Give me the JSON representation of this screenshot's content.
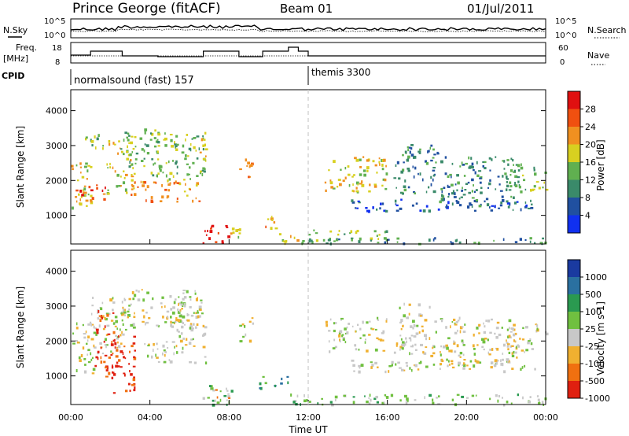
{
  "header": {
    "station": "Prince George (fitACF)",
    "beam": "Beam 01",
    "date": "01/Jul/2011"
  },
  "top_panels": {
    "nsky_label": "N.Sky",
    "nsky_ticks": [
      "10^5",
      "10^0"
    ],
    "nsearch_label": "N.Search",
    "nsearch_ticks": [
      "10^5",
      "10^0"
    ],
    "freq_label": "Freq.",
    "freq_unit": "[MHz]",
    "freq_ticks": [
      "18",
      "8"
    ],
    "nave_label": "Nave",
    "nave_ticks": [
      "60",
      "0"
    ],
    "cpid_label": "CPID",
    "cpid_segments": [
      {
        "name": "normalsound (fast) 157",
        "start_hour": 0,
        "end_hour": 12
      },
      {
        "name": "themis 3300",
        "start_hour": 12,
        "end_hour": 24
      }
    ],
    "freq_steps": [
      {
        "from": 0,
        "to": 1,
        "mhz": 11.0
      },
      {
        "from": 1,
        "to": 2.6,
        "mhz": 13.5
      },
      {
        "from": 2.6,
        "to": 4.4,
        "mhz": 10.5
      },
      {
        "from": 4.4,
        "to": 6.7,
        "mhz": 10.0
      },
      {
        "from": 6.7,
        "to": 8.5,
        "mhz": 13.5
      },
      {
        "from": 8.5,
        "to": 9.7,
        "mhz": 10.0
      },
      {
        "from": 9.7,
        "to": 11.0,
        "mhz": 13.5
      },
      {
        "from": 11.0,
        "to": 11.5,
        "mhz": 16.0
      },
      {
        "from": 11.5,
        "to": 12.0,
        "mhz": 13.5
      },
      {
        "from": 12.0,
        "to": 24,
        "mhz": 10.5
      }
    ]
  },
  "chart_data": [
    {
      "type": "heatmap",
      "name": "power",
      "ylabel": "Slant Range [km]",
      "xlabel": "Time UT",
      "x_ticks": [
        "00:00",
        "04:00",
        "08:00",
        "12:00",
        "16:00",
        "20:00",
        "00:00"
      ],
      "x_range_hours": [
        0,
        24
      ],
      "y_ticks": [
        "1000",
        "2000",
        "3000",
        "4000"
      ],
      "y_range_km": [
        180,
        4600
      ],
      "colorbar_label": "Power [dB]",
      "colorbar_ticks": [
        "4",
        "8",
        "12",
        "16",
        "20",
        "24",
        "28"
      ],
      "colorbar_colors": [
        "#1030f0",
        "#2050a0",
        "#3a8a6a",
        "#60b050",
        "#d8d020",
        "#f09020",
        "#f05010",
        "#e01010"
      ],
      "regions": [
        {
          "t0": 0.0,
          "t1": 1.0,
          "r0": 1100,
          "r1": 2600,
          "level": 4
        },
        {
          "t0": 0.2,
          "t1": 2.0,
          "r0": 1400,
          "r1": 1900,
          "level": 6
        },
        {
          "t0": 0.5,
          "t1": 1.6,
          "r0": 2900,
          "r1": 3400,
          "level": 3
        },
        {
          "t0": 1.8,
          "t1": 3.2,
          "r0": 1600,
          "r1": 3300,
          "level": 4
        },
        {
          "t0": 2.5,
          "t1": 4.5,
          "r0": 2400,
          "r1": 3500,
          "level": 3
        },
        {
          "t0": 3.0,
          "t1": 6.6,
          "r0": 1400,
          "r1": 2000,
          "level": 5
        },
        {
          "t0": 4.0,
          "t1": 6.8,
          "r0": 2000,
          "r1": 3400,
          "level": 3
        },
        {
          "t0": 6.5,
          "t1": 6.8,
          "r0": 2600,
          "r1": 3300,
          "level": 4
        },
        {
          "t0": 6.6,
          "t1": 8.0,
          "r0": 200,
          "r1": 750,
          "level": 7
        },
        {
          "t0": 8.0,
          "t1": 8.6,
          "r0": 350,
          "r1": 700,
          "level": 4
        },
        {
          "t0": 8.5,
          "t1": 9.2,
          "r0": 2000,
          "r1": 2700,
          "level": 5
        },
        {
          "t0": 9.5,
          "t1": 10.5,
          "r0": 650,
          "r1": 1000,
          "level": 5
        },
        {
          "t0": 10.0,
          "t1": 12.0,
          "r0": 200,
          "r1": 500,
          "level": 4
        },
        {
          "t0": 12.0,
          "t1": 24.0,
          "r0": 200,
          "r1": 380,
          "level": 2
        },
        {
          "t0": 12.0,
          "t1": 16.0,
          "r0": 300,
          "r1": 600,
          "level": 3
        },
        {
          "t0": 12.8,
          "t1": 16.0,
          "r0": 1700,
          "r1": 2700,
          "level": 4
        },
        {
          "t0": 14.0,
          "t1": 23.5,
          "r0": 1150,
          "r1": 1500,
          "level": 1
        },
        {
          "t0": 16.3,
          "t1": 18.5,
          "r0": 1600,
          "r1": 3100,
          "level": 2
        },
        {
          "t0": 18.5,
          "t1": 22.5,
          "r0": 1300,
          "r1": 2700,
          "level": 2
        },
        {
          "t0": 22.0,
          "t1": 24.0,
          "r0": 1700,
          "r1": 2500,
          "level": 3
        }
      ]
    },
    {
      "type": "heatmap",
      "name": "velocity",
      "ylabel": "Slant Range [km]",
      "xlabel": "Time UT",
      "x_ticks": [
        "00:00",
        "04:00",
        "08:00",
        "12:00",
        "16:00",
        "20:00",
        "00:00"
      ],
      "x_range_hours": [
        0,
        24
      ],
      "y_ticks": [
        "1000",
        "2000",
        "3000",
        "4000"
      ],
      "y_range_km": [
        180,
        4600
      ],
      "colorbar_label": "Velocity [m s-1]",
      "colorbar_ticks": [
        "1000",
        "500",
        "100",
        "25",
        "-25",
        "-100",
        "-500",
        "-1000"
      ],
      "colorbar_colors": [
        "#1a3aa0",
        "#2a70a0",
        "#2a9a50",
        "#70c040",
        "#c8c8c8",
        "#f0b030",
        "#f07010",
        "#e02010"
      ],
      "regions": [
        {
          "t0": 0.0,
          "t1": 1.2,
          "r0": 1100,
          "r1": 2600,
          "level": 4
        },
        {
          "t0": 1.0,
          "t1": 2.8,
          "r0": 1600,
          "r1": 3300,
          "level": 4
        },
        {
          "t0": 1.2,
          "t1": 2.2,
          "r0": 1000,
          "r1": 2900,
          "level": 7
        },
        {
          "t0": 2.0,
          "t1": 3.2,
          "r0": 500,
          "r1": 2200,
          "level": 7
        },
        {
          "t0": 2.5,
          "t1": 6.6,
          "r0": 2400,
          "r1": 3500,
          "level": 4
        },
        {
          "t0": 3.5,
          "t1": 6.8,
          "r0": 1400,
          "r1": 2000,
          "level": 4
        },
        {
          "t0": 5.0,
          "t1": 6.8,
          "r0": 2000,
          "r1": 3400,
          "level": 4
        },
        {
          "t0": 6.6,
          "t1": 8.2,
          "r0": 200,
          "r1": 750,
          "level": 3
        },
        {
          "t0": 7.2,
          "t1": 8.0,
          "r0": 300,
          "r1": 700,
          "level": 5
        },
        {
          "t0": 8.5,
          "t1": 9.2,
          "r0": 2000,
          "r1": 2700,
          "level": 4
        },
        {
          "t0": 9.5,
          "t1": 11.0,
          "r0": 650,
          "r1": 1000,
          "level": 2
        },
        {
          "t0": 11.0,
          "t1": 24.0,
          "r0": 200,
          "r1": 500,
          "level": 3
        },
        {
          "t0": 12.8,
          "t1": 16.0,
          "r0": 1700,
          "r1": 2700,
          "level": 4
        },
        {
          "t0": 14.0,
          "t1": 23.5,
          "r0": 1150,
          "r1": 1500,
          "level": 4
        },
        {
          "t0": 16.3,
          "t1": 18.5,
          "r0": 1600,
          "r1": 3100,
          "level": 4
        },
        {
          "t0": 18.5,
          "t1": 22.5,
          "r0": 1300,
          "r1": 2700,
          "level": 4
        },
        {
          "t0": 22.0,
          "t1": 24.0,
          "r0": 1700,
          "r1": 2500,
          "level": 4
        }
      ]
    }
  ]
}
